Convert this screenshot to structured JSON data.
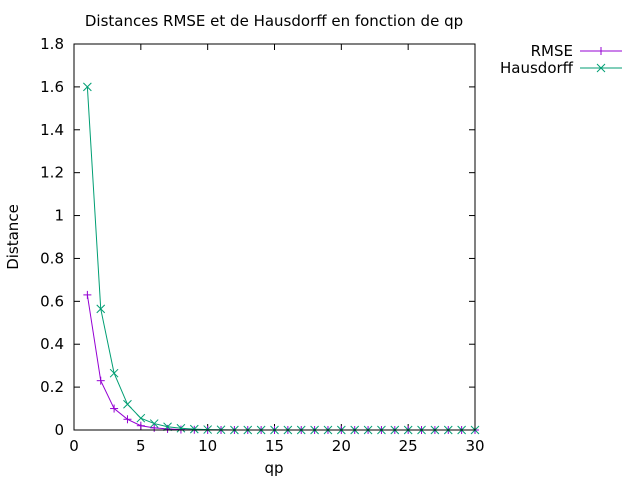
{
  "chart_data": {
    "type": "line",
    "title": "Distances RMSE et de Hausdorff en fonction de qp",
    "xlabel": "qp",
    "ylabel": "Distance",
    "xlim": [
      0,
      30
    ],
    "ylim": [
      0,
      1.8
    ],
    "xticks": [
      "0",
      "5",
      "10",
      "15",
      "20",
      "25",
      "30"
    ],
    "yticks": [
      "0",
      "0.2",
      "0.4",
      "0.6",
      "0.8",
      "1",
      "1.2",
      "1.4",
      "1.6",
      "1.8"
    ],
    "grid": false,
    "legend_position": "top-right-outside",
    "x": [
      1,
      2,
      3,
      4,
      5,
      6,
      7,
      8,
      9,
      10,
      11,
      12,
      13,
      14,
      15,
      16,
      17,
      18,
      19,
      20,
      21,
      22,
      23,
      24,
      25,
      26,
      27,
      28,
      29,
      30
    ],
    "series": [
      {
        "name": "RMSE",
        "color": "#9400d3",
        "marker": "plus",
        "values": [
          0.63,
          0.23,
          0.1,
          0.05,
          0.02,
          0.01,
          0.005,
          0.002,
          0.001,
          0,
          0,
          0,
          0,
          0,
          0,
          0,
          0,
          0,
          0,
          0,
          0,
          0,
          0,
          0,
          0,
          0,
          0,
          0,
          0,
          0
        ]
      },
      {
        "name": "Hausdorff",
        "color": "#009e73",
        "marker": "cross",
        "values": [
          1.6,
          0.565,
          0.265,
          0.12,
          0.055,
          0.03,
          0.015,
          0.008,
          0.004,
          0.002,
          0.001,
          0,
          0,
          0,
          0,
          0,
          0,
          0,
          0,
          0,
          0,
          0,
          0,
          0,
          0,
          0,
          0,
          0,
          0,
          0
        ]
      }
    ]
  }
}
